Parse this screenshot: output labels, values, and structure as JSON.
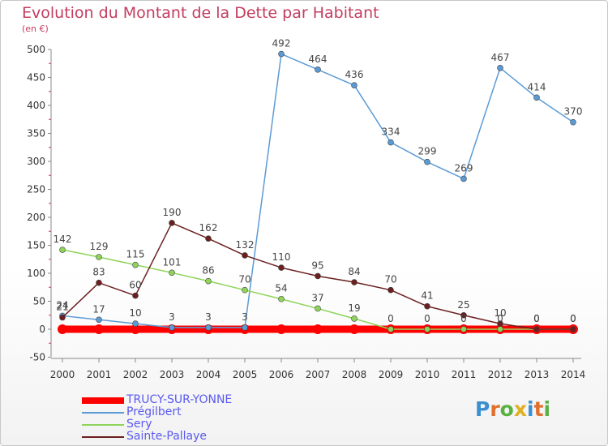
{
  "title": "Evolution du Montant de la Dette par Habitant",
  "subtitle": "(en €)",
  "logo": {
    "text": "Proxiti",
    "letter_colors": [
      "#3a8fd0",
      "#e07030",
      "#5ab040",
      "#e0b020",
      "#3a8fd0",
      "#e07030",
      "#5ab040"
    ]
  },
  "chart_data": {
    "type": "line",
    "title": "Evolution du Montant de la Dette par Habitant",
    "subtitle": "(en €)",
    "x": [
      "2000",
      "2001",
      "2002",
      "2003",
      "2004",
      "2005",
      "2006",
      "2007",
      "2008",
      "2009",
      "2010",
      "2011",
      "2012",
      "2013",
      "2014"
    ],
    "ylim": [
      -50,
      500
    ],
    "yticks": [
      "-50",
      "0",
      "50",
      "100",
      "150",
      "200",
      "250",
      "300",
      "350",
      "400",
      "450",
      "500"
    ],
    "grid": false,
    "legend_position": "bottom-left",
    "series": [
      {
        "name": "TRUCY-SUR-YONNE",
        "color": "#ff0000",
        "values": [
          0,
          0,
          0,
          0,
          0,
          0,
          0,
          0,
          0,
          0,
          0,
          0,
          0,
          0,
          0
        ],
        "labels": [
          "",
          "",
          "",
          "",
          "",
          "",
          "",
          "",
          "",
          "",
          "",
          "",
          "",
          "",
          ""
        ]
      },
      {
        "name": "Prégilbert",
        "color": "#5b9bd5",
        "values": [
          24,
          17,
          10,
          3,
          3,
          3,
          492,
          464,
          436,
          334,
          299,
          269,
          467,
          414,
          370
        ],
        "labels": [
          "24",
          "17",
          "10",
          "3",
          "3",
          "3",
          "492",
          "464",
          "436",
          "334",
          "299",
          "269",
          "467",
          "414",
          "370"
        ]
      },
      {
        "name": "Sery",
        "color": "#8ed45a",
        "values": [
          142,
          129,
          115,
          101,
          86,
          70,
          54,
          37,
          19,
          0,
          0,
          0,
          0,
          0,
          0
        ],
        "labels": [
          "142",
          "129",
          "115",
          "101",
          "86",
          "70",
          "54",
          "37",
          "19",
          "0",
          "0",
          "0",
          "0",
          "0",
          "0"
        ]
      },
      {
        "name": "Sainte-Pallaye",
        "color": "#6b1f1f",
        "values": [
          21,
          83,
          60,
          190,
          162,
          132,
          110,
          95,
          84,
          70,
          41,
          25,
          10,
          0,
          0
        ],
        "labels": [
          "21",
          "83",
          "60",
          "190",
          "162",
          "132",
          "110",
          "95",
          "84",
          "70",
          "41",
          "25",
          "10",
          "0",
          "0"
        ]
      }
    ]
  }
}
